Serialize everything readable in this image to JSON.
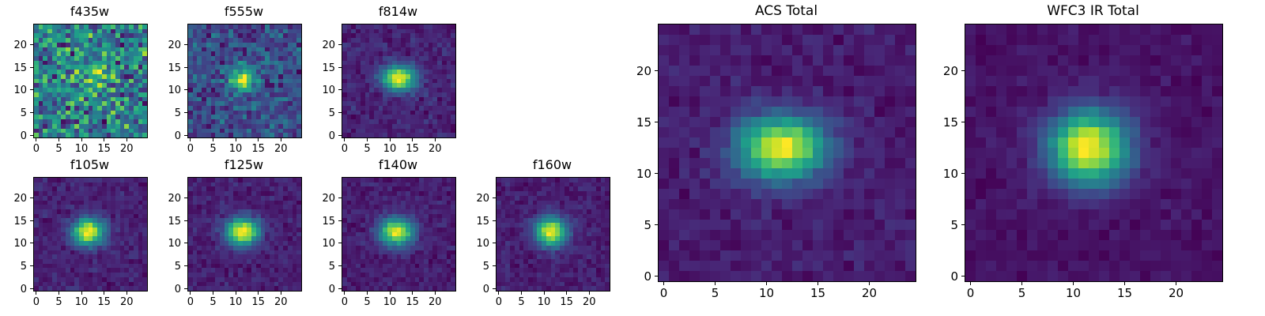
{
  "figure": {
    "background": "#ffffff",
    "frame_color": "#000000",
    "text_color": "#000000",
    "colormap": "viridis",
    "colormap_stops": [
      "#440154",
      "#482878",
      "#3e4989",
      "#31688e",
      "#26828e",
      "#1f9e89",
      "#35b779",
      "#6dcd59",
      "#b4de2c",
      "#fde725"
    ]
  },
  "chart_data": [
    {
      "type": "heatmap",
      "title": "f435w",
      "grid_size": 25,
      "xlim": [
        0,
        24
      ],
      "ylim": [
        0,
        24
      ],
      "x_ticks": [
        0,
        5,
        10,
        15,
        20
      ],
      "y_ticks": [
        0,
        5,
        10,
        15,
        20
      ],
      "source": {
        "center_x": 12,
        "center_y": 12.5,
        "sigma_x": 3.0,
        "sigma_y": 2.5,
        "amplitude": 0.5
      },
      "noise_level": 1.0,
      "seed": 435
    },
    {
      "type": "heatmap",
      "title": "f555w",
      "grid_size": 25,
      "xlim": [
        0,
        24
      ],
      "ylim": [
        0,
        24
      ],
      "x_ticks": [
        0,
        5,
        10,
        15,
        20
      ],
      "y_ticks": [
        0,
        5,
        10,
        15,
        20
      ],
      "source": {
        "center_x": 11.5,
        "center_y": 12.5,
        "sigma_x": 2.0,
        "sigma_y": 1.8,
        "amplitude": 1.0
      },
      "noise_level": 0.35,
      "seed": 555
    },
    {
      "type": "heatmap",
      "title": "f814w",
      "grid_size": 25,
      "xlim": [
        0,
        24
      ],
      "ylim": [
        0,
        24
      ],
      "x_ticks": [
        0,
        5,
        10,
        15,
        20
      ],
      "y_ticks": [
        0,
        5,
        10,
        15,
        20
      ],
      "source": {
        "center_x": 12,
        "center_y": 12.5,
        "sigma_x": 2.6,
        "sigma_y": 1.9,
        "amplitude": 1.0
      },
      "noise_level": 0.12,
      "seed": 814
    },
    {
      "type": "heatmap",
      "title": "f105w",
      "grid_size": 25,
      "xlim": [
        0,
        24
      ],
      "ylim": [
        0,
        24
      ],
      "x_ticks": [
        0,
        5,
        10,
        15,
        20
      ],
      "y_ticks": [
        0,
        5,
        10,
        15,
        20
      ],
      "source": {
        "center_x": 11.5,
        "center_y": 12.5,
        "sigma_x": 2.4,
        "sigma_y": 2.0,
        "amplitude": 1.0
      },
      "noise_level": 0.1,
      "seed": 105
    },
    {
      "type": "heatmap",
      "title": "f125w",
      "grid_size": 25,
      "xlim": [
        0,
        24
      ],
      "ylim": [
        0,
        24
      ],
      "x_ticks": [
        0,
        5,
        10,
        15,
        20
      ],
      "y_ticks": [
        0,
        5,
        10,
        15,
        20
      ],
      "source": {
        "center_x": 11.5,
        "center_y": 12.5,
        "sigma_x": 2.5,
        "sigma_y": 2.1,
        "amplitude": 1.0
      },
      "noise_level": 0.1,
      "seed": 125
    },
    {
      "type": "heatmap",
      "title": "f140w",
      "grid_size": 25,
      "xlim": [
        0,
        24
      ],
      "ylim": [
        0,
        24
      ],
      "x_ticks": [
        0,
        5,
        10,
        15,
        20
      ],
      "y_ticks": [
        0,
        5,
        10,
        15,
        20
      ],
      "source": {
        "center_x": 11.5,
        "center_y": 12.5,
        "sigma_x": 2.6,
        "sigma_y": 2.1,
        "amplitude": 1.0
      },
      "noise_level": 0.1,
      "seed": 140
    },
    {
      "type": "heatmap",
      "title": "f160w",
      "grid_size": 25,
      "xlim": [
        0,
        24
      ],
      "ylim": [
        0,
        24
      ],
      "x_ticks": [
        0,
        5,
        10,
        15,
        20
      ],
      "y_ticks": [
        0,
        5,
        10,
        15,
        20
      ],
      "source": {
        "center_x": 11.5,
        "center_y": 12.5,
        "sigma_x": 2.4,
        "sigma_y": 2.2,
        "amplitude": 1.0
      },
      "noise_level": 0.1,
      "seed": 160
    },
    {
      "type": "heatmap",
      "title": "ACS Total",
      "grid_size": 25,
      "xlim": [
        0,
        24
      ],
      "ylim": [
        0,
        24
      ],
      "x_ticks": [
        0,
        5,
        10,
        15,
        20
      ],
      "y_ticks": [
        0,
        5,
        10,
        15,
        20
      ],
      "source": {
        "center_x": 11.5,
        "center_y": 12.5,
        "sigma_x": 3.0,
        "sigma_y": 2.2,
        "amplitude": 1.0
      },
      "noise_level": 0.09,
      "seed": 801
    },
    {
      "type": "heatmap",
      "title": "WFC3 IR Total",
      "grid_size": 25,
      "xlim": [
        0,
        24
      ],
      "ylim": [
        0,
        24
      ],
      "x_ticks": [
        0,
        5,
        10,
        15,
        20
      ],
      "y_ticks": [
        0,
        5,
        10,
        15,
        20
      ],
      "source": {
        "center_x": 11.5,
        "center_y": 12.5,
        "sigma_x": 2.7,
        "sigma_y": 2.5,
        "amplitude": 1.0
      },
      "noise_level": 0.06,
      "seed": 802
    }
  ]
}
